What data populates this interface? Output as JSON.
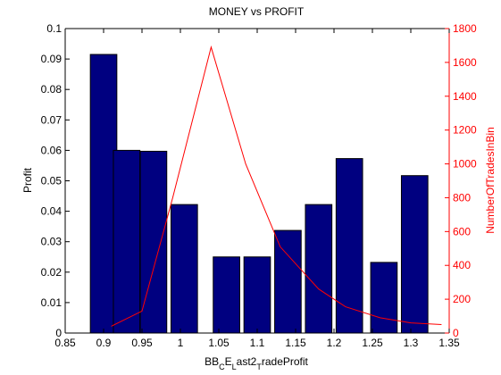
{
  "chart_data": {
    "type": "bar",
    "title": "MONEY vs PROFIT",
    "xlabel_parts": [
      {
        "t": "BB",
        "sub": false
      },
      {
        "t": "C",
        "sub": true
      },
      {
        "t": "E",
        "sub": false
      },
      {
        "t": "L",
        "sub": true
      },
      {
        "t": "ast2",
        "sub": false
      },
      {
        "t": "T",
        "sub": true
      },
      {
        "t": "radeProfit",
        "sub": false
      }
    ],
    "ylabel": "Profit",
    "y2label": "NumberOfTradesInBin",
    "xlim": [
      0.85,
      1.35
    ],
    "ylim": [
      0,
      0.1
    ],
    "y2lim": [
      0,
      1800
    ],
    "xticks": [
      "0.85",
      "0.9",
      "0.95",
      "1",
      "1.05",
      "1.1",
      "1.15",
      "1.2",
      "1.25",
      "1.3",
      "1.35"
    ],
    "xtick_values": [
      0.85,
      0.9,
      0.95,
      1.0,
      1.05,
      1.1,
      1.15,
      1.2,
      1.25,
      1.3,
      1.35
    ],
    "yticks": [
      "0",
      "0.01",
      "0.02",
      "0.03",
      "0.04",
      "0.05",
      "0.06",
      "0.07",
      "0.08",
      "0.09",
      "0.1"
    ],
    "ytick_values": [
      0,
      0.01,
      0.02,
      0.03,
      0.04,
      0.05,
      0.06,
      0.07,
      0.08,
      0.09,
      0.1
    ],
    "y2ticks": [
      "0",
      "200",
      "400",
      "600",
      "800",
      "1000",
      "1200",
      "1400",
      "1600",
      "1800"
    ],
    "y2tick_values": [
      0,
      200,
      400,
      600,
      800,
      1000,
      1200,
      1400,
      1600,
      1800
    ],
    "bar_width": 0.0345,
    "bars": {
      "x": [
        0.9,
        0.93,
        0.965,
        1.005,
        1.06,
        1.1,
        1.14,
        1.18,
        1.22,
        1.265,
        1.305
      ],
      "values": [
        0.0915,
        0.06,
        0.0597,
        0.0422,
        0.025,
        0.025,
        0.0337,
        0.0422,
        0.0573,
        0.0232,
        0.0517
      ]
    },
    "line": {
      "x": [
        0.91,
        0.95,
        0.99,
        1.04,
        1.085,
        1.13,
        1.18,
        1.215,
        1.26,
        1.3,
        1.34
      ],
      "values": [
        40,
        130,
        800,
        1690,
        1000,
        510,
        260,
        155,
        90,
        60,
        50
      ]
    },
    "colors": {
      "bar_fill": "#000080",
      "bar_edge": "#000000",
      "line": "#ff0000",
      "right_axis": "#ff0000",
      "left_axis": "#000000"
    },
    "grid": false,
    "legend": "none"
  }
}
